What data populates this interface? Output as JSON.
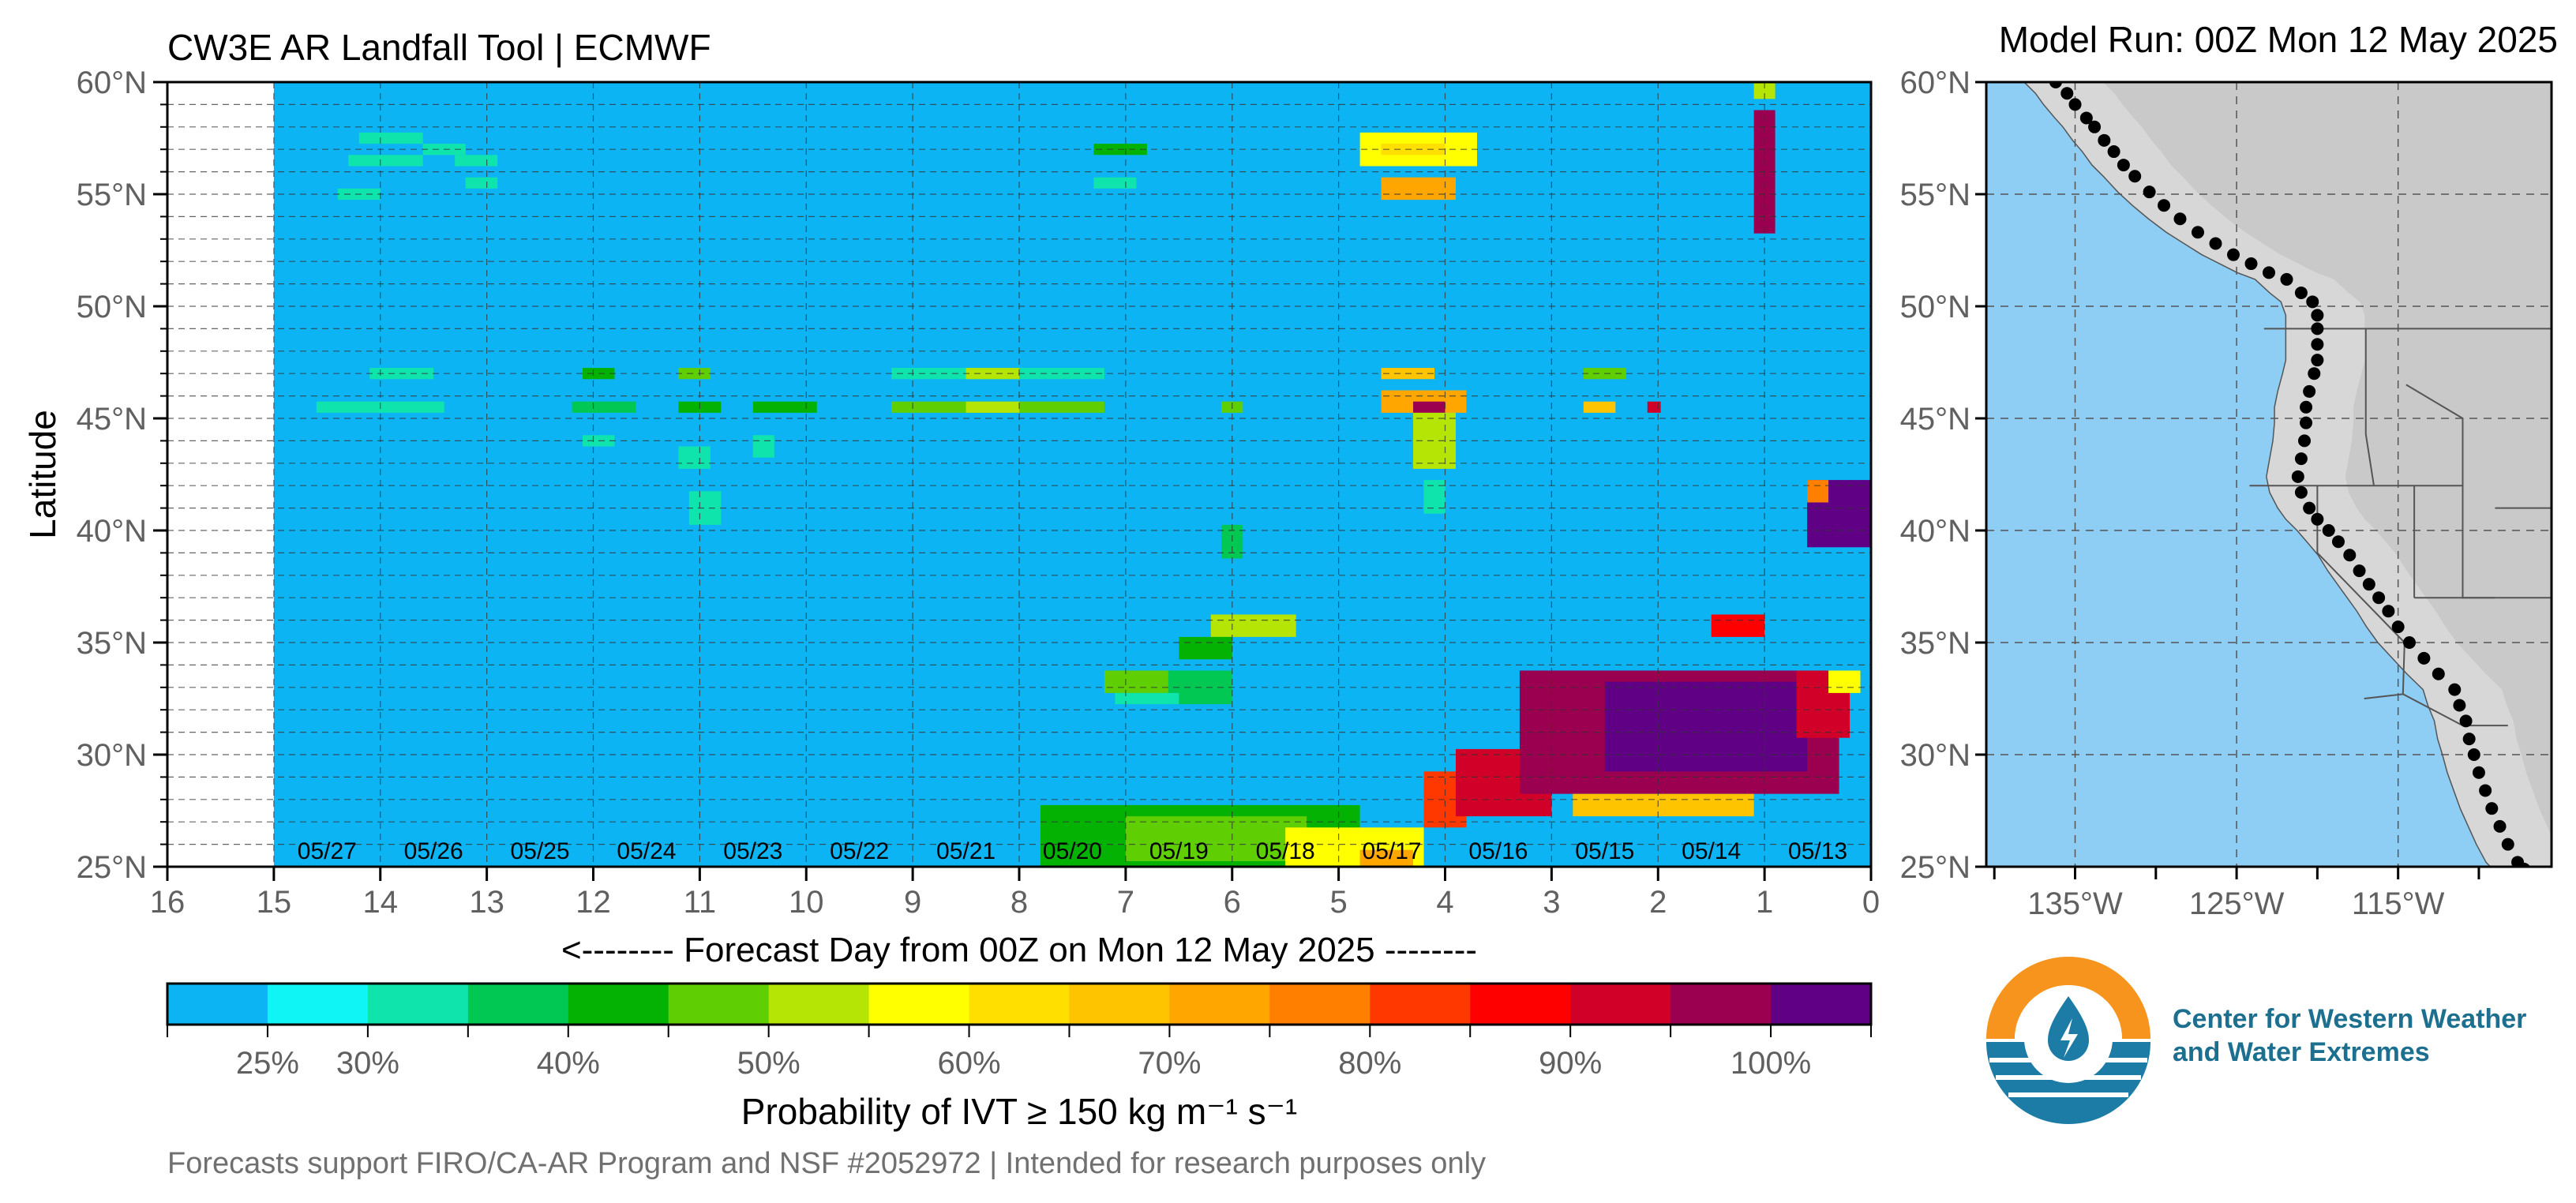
{
  "header": {
    "title": "CW3E AR Landfall Tool | ECMWF",
    "model_run": "Model Run: 00Z Mon 12 May 2025"
  },
  "chart_data": [
    {
      "type": "heatmap",
      "title": "CW3E AR Landfall Tool | ECMWF",
      "ylabel": "Latitude",
      "xlabel": "<-------- Forecast Day from 00Z on Mon 12 May 2025 --------",
      "xlim": [
        16,
        0
      ],
      "ylim": [
        25,
        60
      ],
      "x_ticks": [
        16,
        15,
        14,
        13,
        12,
        11,
        10,
        9,
        8,
        7,
        6,
        5,
        4,
        3,
        2,
        1,
        0
      ],
      "y_ticks": [
        "60°N",
        "55°N",
        "50°N",
        "45°N",
        "40°N",
        "35°N",
        "30°N",
        "25°N"
      ],
      "date_labels": [
        "05/27",
        "05/26",
        "05/25",
        "05/24",
        "05/23",
        "05/22",
        "05/21",
        "05/20",
        "05/19",
        "05/18",
        "05/17",
        "05/16",
        "05/15",
        "05/14",
        "05/13"
      ],
      "grid": true,
      "cell_size": {
        "day": 0.125,
        "lat": 0.5
      },
      "no_data_beyond_day": 15,
      "background_probability": 0.2,
      "patches": [
        {
          "d": [
            14.2,
            13.6
          ],
          "lat": [
            57.5,
            57.5
          ],
          "p": 30
        },
        {
          "d": [
            13.6,
            13.2
          ],
          "lat": [
            57,
            57
          ],
          "p": 30
        },
        {
          "d": [
            14.3,
            13.6
          ],
          "lat": [
            56.5,
            56.5
          ],
          "p": 30
        },
        {
          "d": [
            13.3,
            12.9
          ],
          "lat": [
            56.5,
            56.5
          ],
          "p": 30
        },
        {
          "d": [
            14.4,
            14.0
          ],
          "lat": [
            55,
            55
          ],
          "p": 30
        },
        {
          "d": [
            13.2,
            12.9
          ],
          "lat": [
            55.5,
            55.5
          ],
          "p": 30
        },
        {
          "d": [
            14.6,
            13.4
          ],
          "lat": [
            45.5,
            45.5
          ],
          "p": 30
        },
        {
          "d": [
            14.1,
            13.5
          ],
          "lat": [
            47,
            47
          ],
          "p": 30
        },
        {
          "d": [
            12.2,
            11.6
          ],
          "lat": [
            45.5,
            45.5
          ],
          "p": 35
        },
        {
          "d": [
            12.1,
            11.8
          ],
          "lat": [
            47,
            47
          ],
          "p": 40
        },
        {
          "d": [
            12.1,
            11.8
          ],
          "lat": [
            44,
            44
          ],
          "p": 30
        },
        {
          "d": [
            11.2,
            10.8
          ],
          "lat": [
            45.5,
            45.5
          ],
          "p": 40
        },
        {
          "d": [
            11.2,
            10.9
          ],
          "lat": [
            47,
            47
          ],
          "p": 45
        },
        {
          "d": [
            11.1,
            10.8
          ],
          "lat": [
            40.5,
            41.5
          ],
          "p": 30
        },
        {
          "d": [
            11.2,
            10.9
          ],
          "lat": [
            43,
            43.5
          ],
          "p": 30
        },
        {
          "d": [
            10.5,
            9.9
          ],
          "lat": [
            45.5,
            45.5
          ],
          "p": 40
        },
        {
          "d": [
            10.5,
            10.3
          ],
          "lat": [
            43.5,
            44
          ],
          "p": 30
        },
        {
          "d": [
            9.2,
            7.2
          ],
          "lat": [
            45.5,
            45.5
          ],
          "p": 48
        },
        {
          "d": [
            9.2,
            7.2
          ],
          "lat": [
            47,
            47
          ],
          "p": 30
        },
        {
          "d": [
            8.5,
            8.0
          ],
          "lat": [
            47,
            47
          ],
          "p": 50
        },
        {
          "d": [
            8.5,
            8.0
          ],
          "lat": [
            45.5,
            45.5
          ],
          "p": 52
        },
        {
          "d": [
            6.1,
            5.9
          ],
          "lat": [
            45.5,
            45.5
          ],
          "p": 45
        },
        {
          "d": [
            7.3,
            6.8
          ],
          "lat": [
            57,
            57
          ],
          "p": 40
        },
        {
          "d": [
            7.3,
            6.9
          ],
          "lat": [
            55.5,
            55.5
          ],
          "p": 30
        },
        {
          "d": [
            6.1,
            5.9
          ],
          "lat": [
            39,
            40
          ],
          "p": 35
        },
        {
          "d": [
            6.2,
            5.4
          ],
          "lat": [
            35.5,
            36
          ],
          "p": 50
        },
        {
          "d": [
            6.5,
            6.0
          ],
          "lat": [
            34.5,
            35
          ],
          "p": 42
        },
        {
          "d": [
            7.2,
            6.5
          ],
          "lat": [
            33,
            33.5
          ],
          "p": 45
        },
        {
          "d": [
            6.6,
            6.0
          ],
          "lat": [
            32.5,
            33.5
          ],
          "p": 35
        },
        {
          "d": [
            7.1,
            6.5
          ],
          "lat": [
            32.5,
            32.5
          ],
          "p": 30
        },
        {
          "d": [
            4.8,
            3.7
          ],
          "lat": [
            56.5,
            57.5
          ],
          "p": 58
        },
        {
          "d": [
            4.6,
            4.0
          ],
          "lat": [
            57,
            57
          ],
          "p": 64
        },
        {
          "d": [
            4.6,
            3.9
          ],
          "lat": [
            55,
            55.5
          ],
          "p": 70
        },
        {
          "d": [
            4.6,
            3.8
          ],
          "lat": [
            45.5,
            46
          ],
          "p": 72
        },
        {
          "d": [
            4.3,
            4.0
          ],
          "lat": [
            45.5,
            45.5
          ],
          "p": 95
        },
        {
          "d": [
            4.6,
            4.1
          ],
          "lat": [
            47,
            47
          ],
          "p": 65
        },
        {
          "d": [
            4.3,
            3.9
          ],
          "lat": [
            43,
            45
          ],
          "p": 50
        },
        {
          "d": [
            4.2,
            4.0
          ],
          "lat": [
            41,
            42
          ],
          "p": 30
        },
        {
          "d": [
            2.7,
            2.4
          ],
          "lat": [
            45.5,
            45.5
          ],
          "p": 68
        },
        {
          "d": [
            2.7,
            2.3
          ],
          "lat": [
            47,
            47
          ],
          "p": 45
        },
        {
          "d": [
            2.1,
            2.0
          ],
          "lat": [
            45.5,
            45.5
          ],
          "p": 90
        },
        {
          "d": [
            1.1,
            0.9
          ],
          "lat": [
            53.5,
            58.5
          ],
          "p": 96
        },
        {
          "d": [
            1.1,
            0.9
          ],
          "lat": [
            59.5,
            60
          ],
          "p": 50
        },
        {
          "d": [
            0.6,
            0.0
          ],
          "lat": [
            39.5,
            42
          ],
          "p": 100
        },
        {
          "d": [
            0.6,
            0.4
          ],
          "lat": [
            41.5,
            42
          ],
          "p": 75
        },
        {
          "d": [
            1.5,
            1.0
          ],
          "lat": [
            35.5,
            36
          ],
          "p": 85
        },
        {
          "d": [
            7.8,
            4.8
          ],
          "lat": [
            25,
            27.5
          ],
          "p": 40
        },
        {
          "d": [
            7.0,
            5.3
          ],
          "lat": [
            25.5,
            27
          ],
          "p": 45
        },
        {
          "d": [
            5.5,
            4.2
          ],
          "lat": [
            25,
            26.5
          ],
          "p": 58
        },
        {
          "d": [
            4.8,
            4.3
          ],
          "lat": [
            25,
            25.5
          ],
          "p": 72
        },
        {
          "d": [
            4.2,
            3.8
          ],
          "lat": [
            27,
            29
          ],
          "p": 82
        },
        {
          "d": [
            3.9,
            3.0
          ],
          "lat": [
            27.5,
            30
          ],
          "p": 90
        },
        {
          "d": [
            3.3,
            0.3
          ],
          "lat": [
            28.5,
            33.5
          ],
          "p": 99
        },
        {
          "d": [
            2.5,
            0.6
          ],
          "lat": [
            29.5,
            33
          ],
          "p": 100
        },
        {
          "d": [
            0.7,
            0.2
          ],
          "lat": [
            31,
            33.5
          ],
          "p": 92
        },
        {
          "d": [
            2.8,
            1.1
          ],
          "lat": [
            27.5,
            28
          ],
          "p": 65
        },
        {
          "d": [
            0.4,
            0.1
          ],
          "lat": [
            33,
            33.5
          ],
          "p": 55
        }
      ]
    }
  ],
  "colorbar": {
    "label": "Probability of IVT ≥ 150 kg m⁻¹ s⁻¹",
    "tick_labels": [
      "25%",
      "30%",
      "40%",
      "50%",
      "60%",
      "70%",
      "80%",
      "90%",
      "100%"
    ],
    "tick_values": [
      25,
      30,
      40,
      50,
      60,
      70,
      80,
      90,
      100
    ],
    "colors": [
      "#0db4f4",
      "#0ff5f5",
      "#10e4ad",
      "#00c853",
      "#04b204",
      "#5fcf04",
      "#b5e504",
      "#ffff00",
      "#ffdf00",
      "#ffc400",
      "#ffa600",
      "#ff7f00",
      "#ff3800",
      "#ff0000",
      "#d10028",
      "#9b0050",
      "#5f0085"
    ],
    "footer": "Forecasts support FIRO/CA-AR Program and NSF #2052972 | Intended for research purposes only"
  },
  "map": {
    "model_run": "Model Run: 00Z Mon 12 May 2025",
    "y_ticks": [
      "60°N",
      "55°N",
      "50°N",
      "45°N",
      "40°N",
      "35°N",
      "30°N",
      "25°N"
    ],
    "x_ticks": [
      "135°W",
      "125°W",
      "115°W"
    ],
    "ocean_color": "#8ecdf4",
    "land_color": "#d6d6d6",
    "coast_points": [
      [
        -136.2,
        60.0
      ],
      [
        -135.5,
        59.5
      ],
      [
        -135.0,
        59.0
      ],
      [
        -134.3,
        58.4
      ],
      [
        -133.8,
        58.0
      ],
      [
        -133.2,
        57.4
      ],
      [
        -132.6,
        56.9
      ],
      [
        -132.0,
        56.3
      ],
      [
        -131.3,
        55.8
      ],
      [
        -130.4,
        55.1
      ],
      [
        -129.5,
        54.5
      ],
      [
        -128.5,
        53.9
      ],
      [
        -127.4,
        53.3
      ],
      [
        -126.3,
        52.8
      ],
      [
        -125.2,
        52.3
      ],
      [
        -124.1,
        51.9
      ],
      [
        -123.0,
        51.5
      ],
      [
        -121.9,
        51.2
      ],
      [
        -121.0,
        50.6
      ],
      [
        -120.3,
        50.2
      ],
      [
        -120.0,
        49.6
      ],
      [
        -120.0,
        49.0
      ],
      [
        -120.0,
        48.3
      ],
      [
        -120.0,
        47.6
      ],
      [
        -120.2,
        47.0
      ],
      [
        -120.5,
        46.2
      ],
      [
        -120.7,
        45.5
      ],
      [
        -120.7,
        44.8
      ],
      [
        -120.8,
        44.0
      ],
      [
        -121.0,
        43.2
      ],
      [
        -121.2,
        42.4
      ],
      [
        -121.0,
        41.7
      ],
      [
        -120.5,
        41.0
      ],
      [
        -120.0,
        40.5
      ],
      [
        -119.3,
        40.0
      ],
      [
        -118.7,
        39.5
      ],
      [
        -118.0,
        38.9
      ],
      [
        -117.4,
        38.2
      ],
      [
        -116.8,
        37.6
      ],
      [
        -116.2,
        37.0
      ],
      [
        -115.6,
        36.4
      ],
      [
        -115.0,
        35.7
      ],
      [
        -114.3,
        35.0
      ],
      [
        -113.4,
        34.3
      ],
      [
        -112.5,
        33.6
      ],
      [
        -111.5,
        32.9
      ],
      [
        -111.2,
        32.2
      ],
      [
        -110.8,
        31.5
      ],
      [
        -110.6,
        30.7
      ],
      [
        -110.3,
        30.0
      ],
      [
        -110.0,
        29.2
      ],
      [
        -109.6,
        28.4
      ],
      [
        -109.2,
        27.6
      ],
      [
        -108.7,
        26.8
      ],
      [
        -108.2,
        26.0
      ],
      [
        -107.6,
        25.2
      ],
      [
        -107.2,
        24.9
      ]
    ]
  },
  "logo": {
    "name_line1": "Center for Western Weather",
    "name_line2": "and Water Extremes",
    "orange": "#f7941d",
    "blue": "#1d7ca6"
  }
}
